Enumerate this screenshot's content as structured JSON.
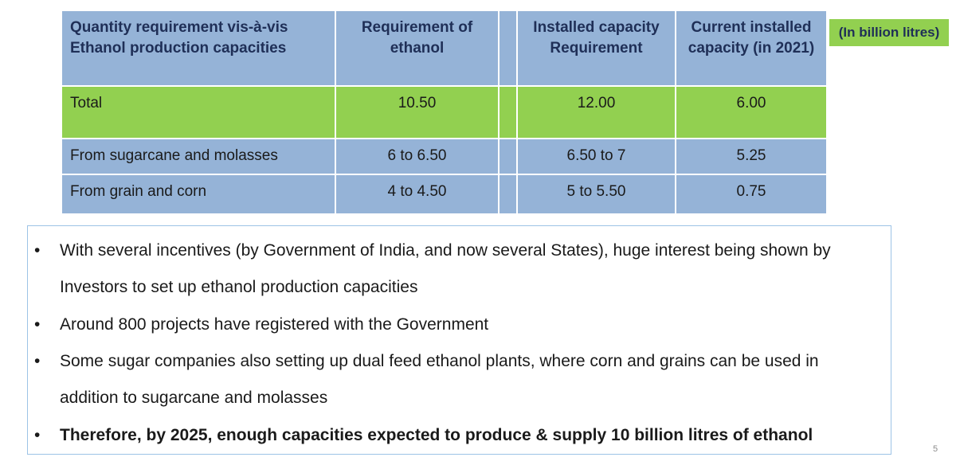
{
  "table": {
    "headers": [
      "Quantity requirement vis-à-vis Ethanol production capacities",
      "Requirement of ethanol",
      "",
      "Installed capacity Requirement",
      "Current installed capacity (in 2021)"
    ],
    "header_lines": {
      "col0": [
        "Quantity requirement vis-à-vis",
        "Ethanol production capacities"
      ],
      "col1": [
        "Requirement of",
        "ethanol"
      ],
      "col3": [
        "Installed capacity",
        "Requirement"
      ],
      "col4": [
        "Current installed",
        "capacity (in 2021)"
      ]
    },
    "rows": [
      {
        "label": "Total",
        "requirement": "10.50",
        "installed_requirement": "12.00",
        "current_installed": "6.00",
        "highlight": true
      },
      {
        "label": "From sugarcane and molasses",
        "requirement": "6 to 6.50",
        "installed_requirement": "6.50 to 7",
        "current_installed": "5.25",
        "highlight": false
      },
      {
        "label": "From grain and corn",
        "requirement": "4 to 4.50",
        "installed_requirement": "5 to 5.50",
        "current_installed": "0.75",
        "highlight": false
      }
    ]
  },
  "unit_badge": "(In billion litres)",
  "bullets": [
    {
      "text": "With several incentives (by Government of India, and now several States), huge interest being shown by Investors to set up ethanol production capacities",
      "bold": false
    },
    {
      "text": "Around 800 projects have registered with the Government",
      "bold": false
    },
    {
      "text": "Some sugar companies also setting up dual feed ethanol plants, where corn and grains can be used in addition to sugarcane and molasses",
      "bold": false
    },
    {
      "text": "Therefore, by 2025, enough capacities expected to produce & supply 10 billion litres of ethanol",
      "bold": true
    }
  ],
  "bullet_symbol": "•",
  "page_number": "5",
  "colors": {
    "header_blue": "#95b3d7",
    "highlight_green": "#92d050",
    "header_text": "#1f2f57",
    "box_border": "#9dc3e6"
  }
}
